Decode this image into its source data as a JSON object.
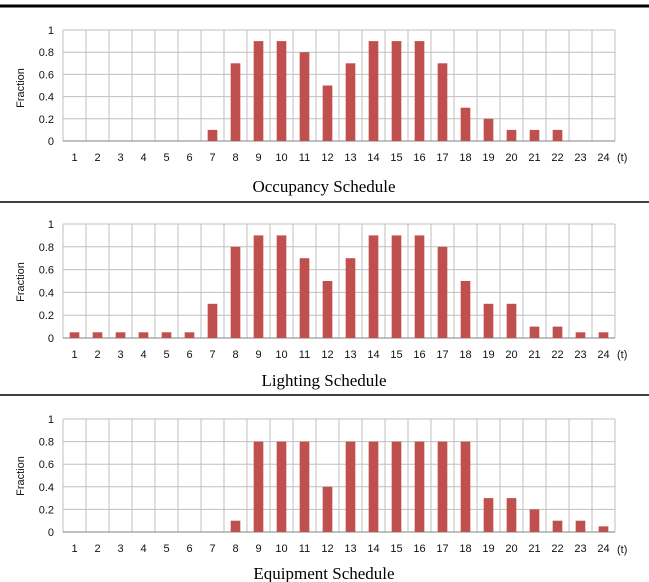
{
  "colors": {
    "bar": "#C0504D",
    "grid": "#BFBFBF",
    "border": "#000000",
    "axis": "#808080"
  },
  "chart_data": [
    {
      "type": "bar",
      "title": "Occupancy Schedule",
      "ylabel": "Fraction",
      "xunit": "(t)",
      "ylim": [
        0,
        1
      ],
      "yticks": [
        "0",
        "0.2",
        "0.4",
        "0.6",
        "0.8",
        "1"
      ],
      "categories": [
        "1",
        "2",
        "3",
        "4",
        "5",
        "6",
        "7",
        "8",
        "9",
        "10",
        "11",
        "12",
        "13",
        "14",
        "15",
        "16",
        "17",
        "18",
        "19",
        "20",
        "21",
        "22",
        "23",
        "24"
      ],
      "values": [
        0,
        0,
        0,
        0,
        0,
        0,
        0.1,
        0.7,
        0.9,
        0.9,
        0.8,
        0.5,
        0.7,
        0.9,
        0.9,
        0.9,
        0.7,
        0.3,
        0.2,
        0.1,
        0.1,
        0.1,
        0,
        0
      ],
      "grid": true
    },
    {
      "type": "bar",
      "title": "Lighting Schedule",
      "ylabel": "Fraction",
      "xunit": "(t)",
      "ylim": [
        0,
        1
      ],
      "yticks": [
        "0",
        "0.2",
        "0.4",
        "0.6",
        "0.8",
        "1"
      ],
      "categories": [
        "1",
        "2",
        "3",
        "4",
        "5",
        "6",
        "7",
        "8",
        "9",
        "10",
        "11",
        "12",
        "13",
        "14",
        "15",
        "16",
        "17",
        "18",
        "19",
        "20",
        "21",
        "22",
        "23",
        "24"
      ],
      "values": [
        0.05,
        0.05,
        0.05,
        0.05,
        0.05,
        0.05,
        0.3,
        0.8,
        0.9,
        0.9,
        0.7,
        0.5,
        0.7,
        0.9,
        0.9,
        0.9,
        0.8,
        0.5,
        0.3,
        0.3,
        0.1,
        0.1,
        0.05,
        0.05
      ],
      "grid": true
    },
    {
      "type": "bar",
      "title": "Equipment Schedule",
      "ylabel": "Fraction",
      "xunit": "(t)",
      "ylim": [
        0,
        1
      ],
      "yticks": [
        "0",
        "0.2",
        "0.4",
        "0.6",
        "0.8",
        "1"
      ],
      "categories": [
        "1",
        "2",
        "3",
        "4",
        "5",
        "6",
        "7",
        "8",
        "9",
        "10",
        "11",
        "12",
        "13",
        "14",
        "15",
        "16",
        "17",
        "18",
        "19",
        "20",
        "21",
        "22",
        "23",
        "24"
      ],
      "values": [
        0,
        0,
        0,
        0,
        0,
        0,
        0,
        0.1,
        0.8,
        0.8,
        0.8,
        0.4,
        0.8,
        0.8,
        0.8,
        0.8,
        0.8,
        0.8,
        0.3,
        0.3,
        0.2,
        0.1,
        0.1,
        0.05
      ],
      "grid": true
    }
  ]
}
